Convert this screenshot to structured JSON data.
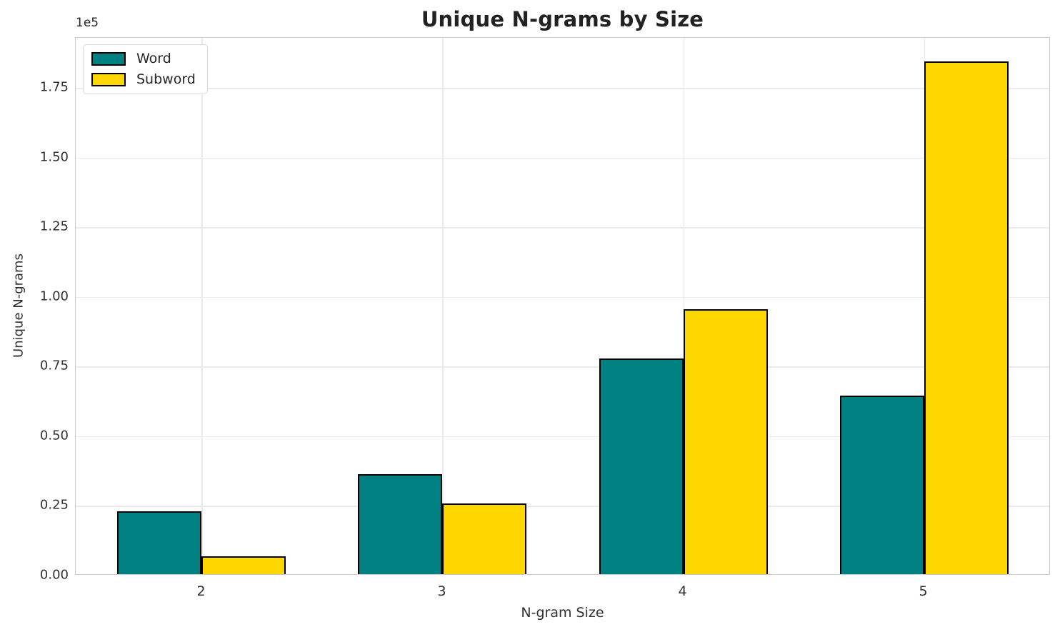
{
  "chart_data": {
    "type": "bar",
    "title": "Unique N-grams by Size",
    "xlabel": "N-gram Size",
    "ylabel": "Unique N-grams",
    "y_offset_label": "1e5",
    "categories": [
      "2",
      "3",
      "4",
      "5"
    ],
    "series": [
      {
        "name": "Word",
        "color": "#008080",
        "values": [
          22500,
          36000,
          77500,
          64000
        ]
      },
      {
        "name": "Subword",
        "color": "#FFD700",
        "values": [
          6500,
          25300,
          95000,
          184000
        ]
      }
    ],
    "bar_edge_color": "#000000",
    "y_ticks": [
      0,
      25000,
      50000,
      75000,
      100000,
      125000,
      150000,
      175000
    ],
    "y_tick_labels": [
      "0.00",
      "0.25",
      "0.50",
      "0.75",
      "1.00",
      "1.25",
      "1.50",
      "1.75"
    ],
    "ylim": [
      0,
      193000
    ],
    "grid": true,
    "legend_position": "upper left"
  },
  "colors": {
    "background": "#ffffff",
    "grid": "#ebebeb",
    "spine": "#cccccc",
    "text": "#262626",
    "title": "#222222"
  }
}
